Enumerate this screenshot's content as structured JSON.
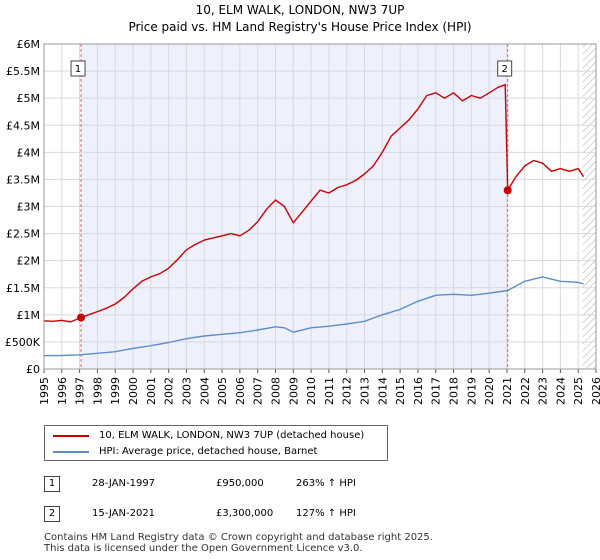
{
  "title": "10, ELM WALK, LONDON, NW3 7UP",
  "subtitle": "Price paid vs. HM Land Registry's House Price Index (HPI)",
  "colors": {
    "property": "#cc0000",
    "hpi": "#5b8fcb",
    "grid": "#d8d8e0",
    "shade": "#eef0fb",
    "hatch": "#aaaaaa"
  },
  "chart_data": {
    "type": "line",
    "xlim": [
      1995,
      2026
    ],
    "ylim": [
      0,
      6000000
    ],
    "x_ticks": [
      1995,
      1996,
      1997,
      1998,
      1999,
      2000,
      2001,
      2002,
      2003,
      2004,
      2005,
      2006,
      2007,
      2008,
      2009,
      2010,
      2011,
      2012,
      2013,
      2014,
      2015,
      2016,
      2017,
      2018,
      2019,
      2020,
      2021,
      2022,
      2023,
      2024,
      2025,
      2026
    ],
    "y_ticks": [
      {
        "value": 0,
        "label": "£0"
      },
      {
        "value": 500000,
        "label": "£500K"
      },
      {
        "value": 1000000,
        "label": "£1M"
      },
      {
        "value": 1500000,
        "label": "£1.5M"
      },
      {
        "value": 2000000,
        "label": "£2M"
      },
      {
        "value": 2500000,
        "label": "£2.5M"
      },
      {
        "value": 3000000,
        "label": "£3M"
      },
      {
        "value": 3500000,
        "label": "£3.5M"
      },
      {
        "value": 4000000,
        "label": "£4M"
      },
      {
        "value": 4500000,
        "label": "£4.5M"
      },
      {
        "value": 5000000,
        "label": "£5M"
      },
      {
        "value": 5500000,
        "label": "£5.5M"
      },
      {
        "value": 6000000,
        "label": "£6M"
      }
    ],
    "shaded_range": [
      1997.08,
      2021.04
    ],
    "hatched_from": 2025.25,
    "series": [
      {
        "name": "10, ELM WALK, LONDON, NW3 7UP (detached house)",
        "color": "#cc0000",
        "points": [
          [
            1995.0,
            890000
          ],
          [
            1995.5,
            880000
          ],
          [
            1996.0,
            900000
          ],
          [
            1996.5,
            870000
          ],
          [
            1997.08,
            950000
          ],
          [
            1997.5,
            1000000
          ],
          [
            1998.0,
            1060000
          ],
          [
            1998.5,
            1120000
          ],
          [
            1999.0,
            1200000
          ],
          [
            1999.5,
            1320000
          ],
          [
            2000.0,
            1480000
          ],
          [
            2000.5,
            1620000
          ],
          [
            2001.0,
            1700000
          ],
          [
            2001.5,
            1760000
          ],
          [
            2002.0,
            1860000
          ],
          [
            2002.5,
            2020000
          ],
          [
            2003.0,
            2200000
          ],
          [
            2003.5,
            2300000
          ],
          [
            2004.0,
            2380000
          ],
          [
            2004.5,
            2420000
          ],
          [
            2005.0,
            2460000
          ],
          [
            2005.5,
            2500000
          ],
          [
            2006.0,
            2460000
          ],
          [
            2006.5,
            2560000
          ],
          [
            2007.0,
            2720000
          ],
          [
            2007.5,
            2950000
          ],
          [
            2008.0,
            3120000
          ],
          [
            2008.5,
            3000000
          ],
          [
            2009.0,
            2700000
          ],
          [
            2009.5,
            2900000
          ],
          [
            2010.0,
            3100000
          ],
          [
            2010.5,
            3300000
          ],
          [
            2011.0,
            3250000
          ],
          [
            2011.5,
            3350000
          ],
          [
            2012.0,
            3400000
          ],
          [
            2012.5,
            3480000
          ],
          [
            2013.0,
            3600000
          ],
          [
            2013.5,
            3750000
          ],
          [
            2014.0,
            4000000
          ],
          [
            2014.5,
            4300000
          ],
          [
            2015.0,
            4450000
          ],
          [
            2015.5,
            4600000
          ],
          [
            2016.0,
            4800000
          ],
          [
            2016.5,
            5050000
          ],
          [
            2017.0,
            5100000
          ],
          [
            2017.5,
            5000000
          ],
          [
            2018.0,
            5100000
          ],
          [
            2018.5,
            4950000
          ],
          [
            2019.0,
            5050000
          ],
          [
            2019.5,
            5000000
          ],
          [
            2020.0,
            5100000
          ],
          [
            2020.5,
            5200000
          ],
          [
            2020.9,
            5250000
          ],
          [
            2021.04,
            3300000
          ],
          [
            2021.5,
            3550000
          ],
          [
            2022.0,
            3750000
          ],
          [
            2022.5,
            3850000
          ],
          [
            2023.0,
            3800000
          ],
          [
            2023.5,
            3650000
          ],
          [
            2024.0,
            3700000
          ],
          [
            2024.5,
            3650000
          ],
          [
            2025.0,
            3700000
          ],
          [
            2025.3,
            3550000
          ]
        ]
      },
      {
        "name": "HPI: Average price, detached house, Barnet",
        "color": "#5b8fcb",
        "points": [
          [
            1995.0,
            245000
          ],
          [
            1996.0,
            250000
          ],
          [
            1997.0,
            262000
          ],
          [
            1998.0,
            290000
          ],
          [
            1999.0,
            320000
          ],
          [
            2000.0,
            380000
          ],
          [
            2001.0,
            430000
          ],
          [
            2002.0,
            490000
          ],
          [
            2003.0,
            560000
          ],
          [
            2004.0,
            610000
          ],
          [
            2005.0,
            640000
          ],
          [
            2006.0,
            670000
          ],
          [
            2007.0,
            720000
          ],
          [
            2008.0,
            780000
          ],
          [
            2008.5,
            760000
          ],
          [
            2009.0,
            680000
          ],
          [
            2010.0,
            760000
          ],
          [
            2011.0,
            790000
          ],
          [
            2012.0,
            830000
          ],
          [
            2013.0,
            880000
          ],
          [
            2014.0,
            1000000
          ],
          [
            2015.0,
            1100000
          ],
          [
            2016.0,
            1250000
          ],
          [
            2017.0,
            1360000
          ],
          [
            2018.0,
            1380000
          ],
          [
            2019.0,
            1360000
          ],
          [
            2020.0,
            1400000
          ],
          [
            2021.04,
            1450000
          ],
          [
            2022.0,
            1620000
          ],
          [
            2023.0,
            1700000
          ],
          [
            2024.0,
            1620000
          ],
          [
            2025.0,
            1600000
          ],
          [
            2025.3,
            1570000
          ]
        ]
      }
    ],
    "markers": [
      {
        "label": "1",
        "x": 1997.08,
        "y": 950000
      },
      {
        "label": "2",
        "x": 2021.04,
        "y": 3300000
      }
    ]
  },
  "legend": {
    "items": [
      {
        "label": "10, ELM WALK, LONDON, NW3 7UP (detached house)"
      },
      {
        "label": "HPI: Average price, detached house, Barnet"
      }
    ]
  },
  "sales": [
    {
      "num": "1",
      "date": "28-JAN-1997",
      "price": "£950,000",
      "hpi": "263% ↑ HPI"
    },
    {
      "num": "2",
      "date": "15-JAN-2021",
      "price": "£3,300,000",
      "hpi": "127% ↑ HPI"
    }
  ],
  "footer": {
    "line1": "Contains HM Land Registry data © Crown copyright and database right 2025.",
    "line2": "This data is licensed under the Open Government Licence v3.0."
  }
}
